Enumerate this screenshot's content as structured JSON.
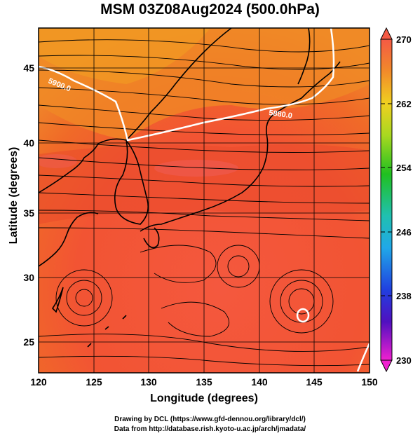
{
  "title": "MSM 03Z08Aug2024 (500.0hPa)",
  "xlabel": "Longitude (degrees)",
  "ylabel": "Latitude  (degrees)",
  "x_ticks": [
    "120",
    "125",
    "130",
    "135",
    "140",
    "145",
    "150"
  ],
  "y_ticks": [
    "45",
    "40",
    "35",
    "30",
    "25"
  ],
  "contours": [
    {
      "label": "5900.0"
    },
    {
      "label": "5880.0"
    }
  ],
  "colorbar": {
    "min": 230,
    "max": 270,
    "tick_labels": [
      "270",
      "262",
      "254",
      "246",
      "238",
      "230"
    ]
  },
  "credits": [
    "Drawing by DCL (https://www.gfd-dennou.org/library/dcl/)",
    "Data from http://database.rish.kyoto-u.ac.jp/arch/jmadata/"
  ]
}
